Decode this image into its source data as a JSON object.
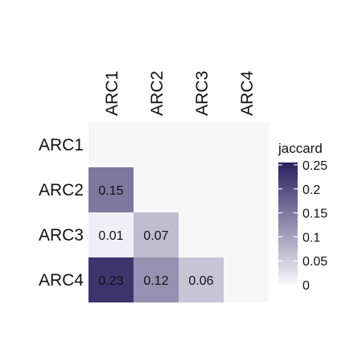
{
  "chart_data": {
    "type": "heatmap",
    "rows": [
      "ARC1",
      "ARC2",
      "ARC3",
      "ARC4"
    ],
    "columns": [
      "ARC1",
      "ARC2",
      "ARC3",
      "ARC4"
    ],
    "cells": [
      {
        "row": "ARC2",
        "col": "ARC1",
        "value": 0.15,
        "label": "0.15"
      },
      {
        "row": "ARC3",
        "col": "ARC1",
        "value": 0.01,
        "label": "0.01"
      },
      {
        "row": "ARC3",
        "col": "ARC2",
        "value": 0.07,
        "label": "0.07"
      },
      {
        "row": "ARC4",
        "col": "ARC1",
        "value": 0.23,
        "label": "0.23"
      },
      {
        "row": "ARC4",
        "col": "ARC2",
        "value": 0.12,
        "label": "0.12"
      },
      {
        "row": "ARC4",
        "col": "ARC3",
        "value": 0.06,
        "label": "0.06"
      }
    ],
    "legend": {
      "title": "jaccard",
      "placement": "right",
      "min": 0,
      "max": 0.255,
      "ticks": [
        {
          "value": 0,
          "label": "0"
        },
        {
          "value": 0.05,
          "label": "0.05"
        },
        {
          "value": 0.1,
          "label": "0.1"
        },
        {
          "value": 0.15,
          "label": "0.15"
        },
        {
          "value": 0.2,
          "label": "0.2"
        },
        {
          "value": 0.25,
          "label": "0.25"
        }
      ],
      "color_low": "#f7f7fb",
      "color_high": "#2a1f5e"
    },
    "missing_color": "#f7f7f7"
  }
}
